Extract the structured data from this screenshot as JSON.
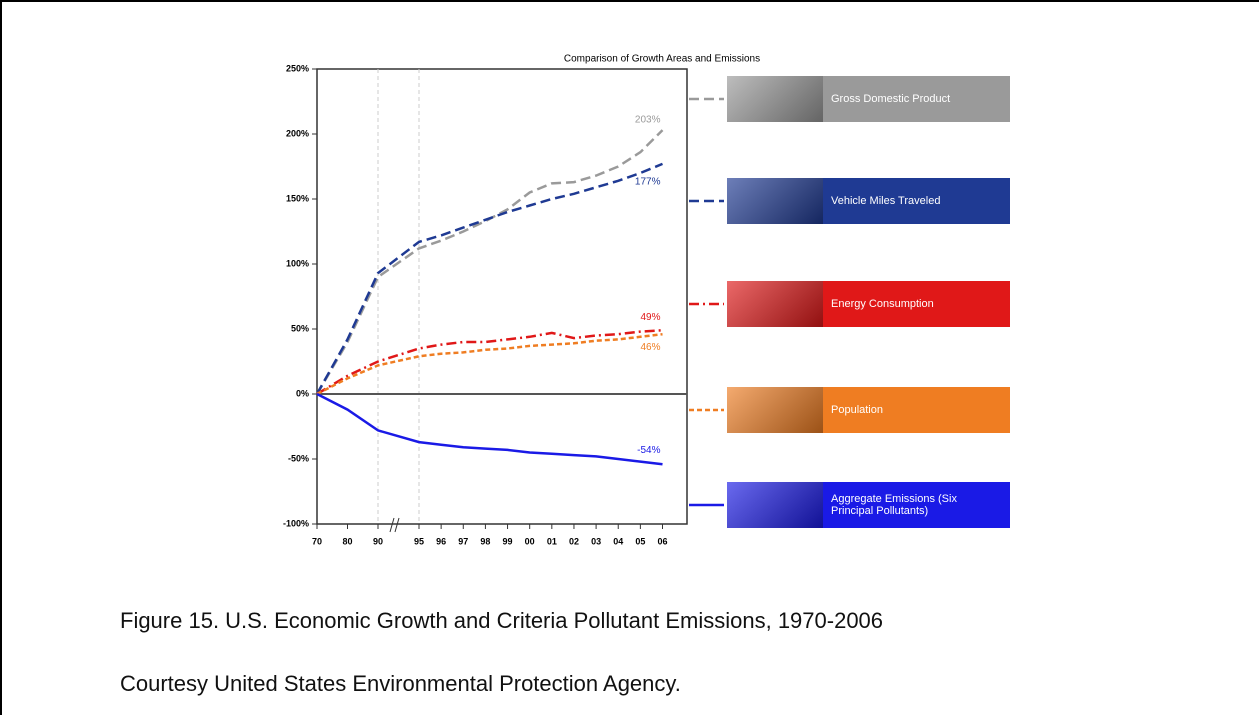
{
  "chart_data": {
    "type": "line",
    "title": "Comparison of Growth Areas and Emissions",
    "categories": [
      "70",
      "80",
      "90",
      "95",
      "96",
      "97",
      "98",
      "99",
      "00",
      "01",
      "02",
      "03",
      "04",
      "05",
      "06"
    ],
    "series": [
      {
        "name": "Gross Domestic Product",
        "color": "#9a9a9a",
        "line_style": "dashed",
        "values": [
          0,
          40,
          90,
          112,
          118,
          125,
          133,
          142,
          155,
          162,
          163,
          168,
          175,
          186,
          203
        ],
        "value_labels": [
          null,
          null,
          null,
          null,
          null,
          null,
          null,
          null,
          null,
          null,
          null,
          null,
          null,
          null,
          "203%"
        ]
      },
      {
        "name": "Vehicle Miles Traveled",
        "color": "#1f3a93",
        "line_style": "dashed",
        "values": [
          0,
          42,
          93,
          117,
          122,
          128,
          134,
          140,
          145,
          150,
          154,
          159,
          164,
          170,
          177
        ],
        "value_labels": [
          null,
          null,
          null,
          null,
          null,
          null,
          null,
          null,
          null,
          null,
          null,
          null,
          null,
          null,
          "177%"
        ]
      },
      {
        "name": "Energy Consumption",
        "color": "#e01818",
        "line_style": "dashdot",
        "values": [
          0,
          14,
          25,
          35,
          38,
          40,
          40,
          42,
          44,
          47,
          43,
          45,
          46,
          48,
          49
        ],
        "value_labels": [
          null,
          null,
          null,
          null,
          null,
          null,
          null,
          null,
          null,
          null,
          null,
          null,
          null,
          null,
          "49%"
        ]
      },
      {
        "name": "Population",
        "color": "#ef7d22",
        "line_style": "dotted",
        "values": [
          0,
          12,
          22,
          29,
          31,
          32,
          34,
          35,
          37,
          38,
          39,
          41,
          42,
          44,
          46
        ],
        "value_labels": [
          null,
          null,
          null,
          null,
          null,
          null,
          null,
          null,
          null,
          null,
          null,
          null,
          null,
          null,
          "46%"
        ]
      },
      {
        "name": "Aggregate Emissions (Six Principal Pollutants)",
        "color": "#1a1ae6",
        "line_style": "solid",
        "values": [
          0,
          -12,
          -28,
          -37,
          -39,
          -41,
          -42,
          -43,
          -45,
          -46,
          -47,
          -48,
          -50,
          -52,
          -54
        ],
        "value_labels": [
          null,
          null,
          null,
          null,
          null,
          null,
          null,
          null,
          null,
          null,
          null,
          null,
          null,
          null,
          "-54%"
        ]
      }
    ],
    "ylim": [
      -100,
      250
    ],
    "yticks": [
      {
        "value": -100,
        "label": "-100%"
      },
      {
        "value": -50,
        "label": "-50%"
      },
      {
        "value": 0,
        "label": "0%"
      },
      {
        "value": 50,
        "label": "50%"
      },
      {
        "value": 100,
        "label": "100%"
      },
      {
        "value": 150,
        "label": "150%"
      },
      {
        "value": 200,
        "label": "200%"
      },
      {
        "value": 250,
        "label": "250%"
      }
    ],
    "legend": "right",
    "caption": "Figure 15. U.S. Economic Growth and Criteria Pollutant Emissions, 1970-2006",
    "source": "Courtesy United States Environmental Protection Agency."
  }
}
